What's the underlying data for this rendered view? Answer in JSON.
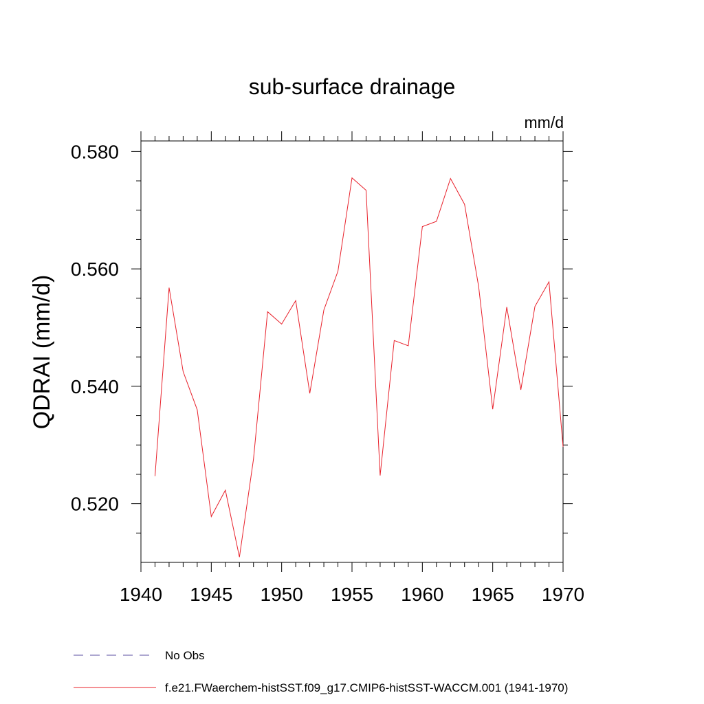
{
  "chart_data": {
    "type": "line",
    "title": "sub-surface drainage",
    "units": "mm/d",
    "ylabel": "QDRAI  (mm/d)",
    "xlabel": "",
    "xlim": [
      1940,
      1970
    ],
    "ylim": [
      0.51,
      0.5818
    ],
    "x_ticks": [
      1940,
      1945,
      1950,
      1955,
      1960,
      1965,
      1970
    ],
    "x_tick_labels": [
      "1940",
      "1945",
      "1950",
      "1955",
      "1960",
      "1965",
      "1970"
    ],
    "y_ticks": [
      0.52,
      0.54,
      0.56,
      0.58
    ],
    "y_tick_labels": [
      "0.520",
      "0.540",
      "0.560",
      "0.580"
    ],
    "grid": false,
    "legend_position": "bottom-left",
    "series": [
      {
        "name": "No Obs",
        "color": "#5b4fa0",
        "dash": "dashed",
        "x": [],
        "y": []
      },
      {
        "name": "f.e21.FWaerchem-histSST.f09_g17.CMIP6-histSST-WACCM.001 (1941-1970)",
        "color": "#e8202a",
        "dash": "solid",
        "x": [
          1941,
          1942,
          1943,
          1944,
          1945,
          1946,
          1947,
          1948,
          1949,
          1950,
          1951,
          1952,
          1953,
          1954,
          1955,
          1956,
          1957,
          1958,
          1959,
          1960,
          1961,
          1962,
          1963,
          1964,
          1965,
          1966,
          1967,
          1968,
          1969,
          1970
        ],
        "y": [
          0.5247,
          0.5568,
          0.5425,
          0.536,
          0.5178,
          0.5223,
          0.5109,
          0.5276,
          0.5527,
          0.5506,
          0.5546,
          0.5388,
          0.553,
          0.5596,
          0.5755,
          0.5734,
          0.5248,
          0.5478,
          0.5469,
          0.5672,
          0.5681,
          0.5754,
          0.571,
          0.557,
          0.5361,
          0.5535,
          0.5394,
          0.5536,
          0.5578,
          0.5297
        ]
      }
    ]
  }
}
